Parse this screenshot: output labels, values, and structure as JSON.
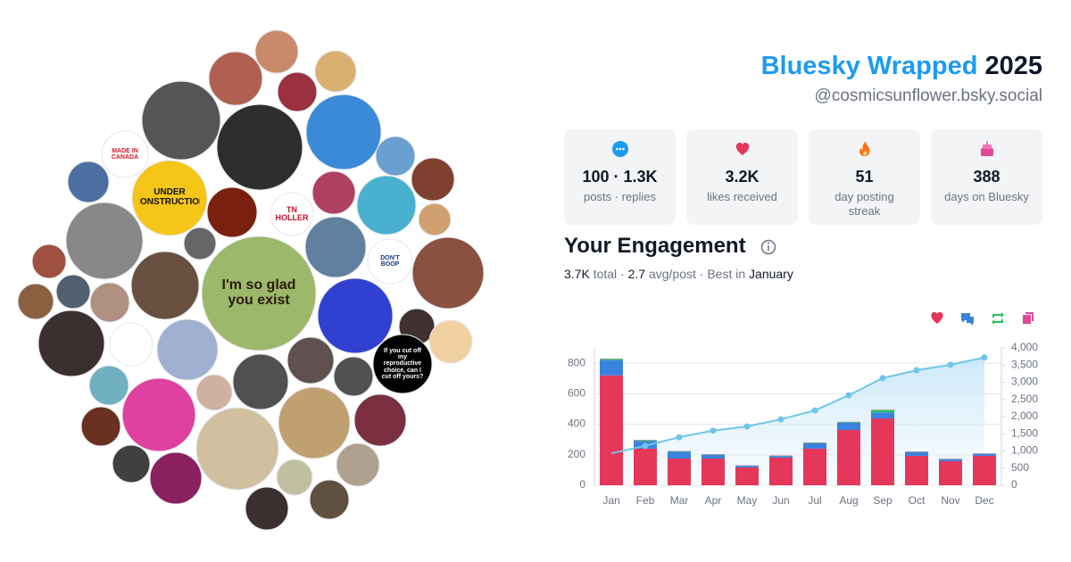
{
  "header": {
    "brand": "Bluesky Wrapped",
    "year": "2025",
    "handle": "@cosmicsunflower.bsky.social"
  },
  "stats": [
    {
      "value": "100 · 1.3K",
      "label": "posts · replies"
    },
    {
      "value": "3.2K",
      "label": "likes received"
    },
    {
      "value": "51",
      "label": "day posting streak"
    },
    {
      "value": "388",
      "label": "days on Bluesky"
    }
  ],
  "avatar_texts": [
    "MADE IN CANADA",
    "UNDER CONSTRUCTION",
    "TN HOLLER",
    "I'm so glad you exist",
    "DON'T BOOP",
    "If you cut off my reproductive choice, can I cut off yours?"
  ],
  "engagement": {
    "title": "Your Engagement",
    "summary": [
      "3.7K",
      " total · ",
      "2.7",
      " avg/post · Best in ",
      "January"
    ]
  },
  "chart_data": {
    "type": "bar",
    "stacked": true,
    "categories": [
      "Jan",
      "Feb",
      "Mar",
      "Apr",
      "May",
      "Jun",
      "Jul",
      "Aug",
      "Sep",
      "Oct",
      "Nov",
      "Dec"
    ],
    "series": [
      {
        "color": "#e5375a",
        "values": [
          720,
          240,
          175,
          175,
          117,
          181,
          240,
          362,
          438,
          193,
          158,
          193
        ]
      },
      {
        "color": "#3b82e0",
        "values": [
          100,
          50,
          45,
          25,
          10,
          10,
          35,
          47,
          40,
          25,
          12,
          12
        ]
      },
      {
        "color": "#22c55e",
        "values": [
          8,
          5,
          3,
          2,
          2,
          2,
          3,
          5,
          15,
          2,
          2,
          2
        ]
      },
      {
        "color": "#e0489a",
        "values": [
          2,
          2,
          2,
          2,
          2,
          2,
          2,
          2,
          2,
          2,
          2,
          2
        ]
      },
      {
        "type": "line",
        "axis": "y2",
        "color": "#6ec6ea",
        "values": [
          930,
          1150,
          1400,
          1590,
          1715,
          1920,
          2180,
          2620,
          3120,
          3350,
          3510,
          3720
        ]
      }
    ],
    "ylim": [
      0,
      900
    ],
    "yticks": [
      0,
      200,
      400,
      600,
      800
    ],
    "y2lim": [
      0,
      4000
    ],
    "y2ticks": [
      0,
      500,
      {
        "value": 1000,
        "label": "1,000"
      },
      {
        "value": 1500,
        "label": "1,500"
      },
      {
        "value": 2000,
        "label": "2,000"
      },
      {
        "value": 2500,
        "label": "2,500"
      },
      {
        "value": 3000,
        "label": "3,000"
      },
      {
        "value": 3500,
        "label": "3,500"
      },
      {
        "value": 4000,
        "label": "4,000"
      }
    ],
    "grid": true
  }
}
